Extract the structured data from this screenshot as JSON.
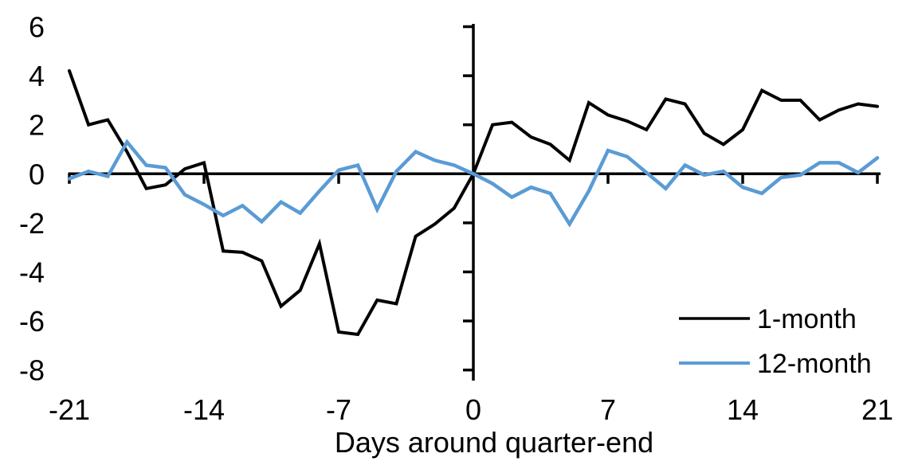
{
  "chart_data": {
    "type": "line",
    "title": "",
    "xlabel": "Days around quarter-end",
    "ylabel": "",
    "x": [
      -21,
      -20,
      -19,
      -18,
      -17,
      -16,
      -15,
      -14,
      -13,
      -12,
      -11,
      -10,
      -9,
      -8,
      -7,
      -6,
      -5,
      -4,
      -3,
      -2,
      -1,
      0,
      1,
      2,
      3,
      4,
      5,
      6,
      7,
      8,
      9,
      10,
      11,
      12,
      13,
      14,
      15,
      16,
      17,
      18,
      19,
      20,
      21
    ],
    "series": [
      {
        "name": "1-month",
        "color": "#000000",
        "values": [
          4.2,
          2.0,
          2.2,
          0.9,
          -0.6,
          -0.45,
          0.2,
          0.45,
          -3.15,
          -3.2,
          -3.55,
          -5.4,
          -4.75,
          -2.85,
          -6.45,
          -6.55,
          -5.15,
          -5.3,
          -2.55,
          -2.05,
          -1.4,
          0,
          2.0,
          2.1,
          1.5,
          1.2,
          0.55,
          2.9,
          2.4,
          2.15,
          1.8,
          3.05,
          2.85,
          1.65,
          1.2,
          1.8,
          3.4,
          3.0,
          3.0,
          2.2,
          2.6,
          2.85,
          2.75
        ]
      },
      {
        "name": "12-month",
        "color": "#5B9BD5",
        "values": [
          -0.2,
          0.1,
          -0.1,
          1.3,
          0.35,
          0.25,
          -0.85,
          -1.25,
          -1.7,
          -1.3,
          -1.95,
          -1.15,
          -1.6,
          -0.7,
          0.15,
          0.35,
          -1.45,
          0.1,
          0.9,
          0.55,
          0.35,
          0,
          -0.4,
          -0.95,
          -0.55,
          -0.8,
          -2.05,
          -0.7,
          0.95,
          0.7,
          0.05,
          -0.6,
          0.35,
          -0.05,
          0.1,
          -0.55,
          -0.8,
          -0.15,
          -0.05,
          0.45,
          0.45,
          0.05,
          0.65
        ]
      }
    ],
    "xlim": [
      -21,
      21
    ],
    "ylim": [
      -8,
      6
    ],
    "xticks": [
      -21,
      -14,
      -7,
      0,
      7,
      14,
      21
    ],
    "yticks": [
      6,
      4,
      2,
      0,
      -2,
      -4,
      -6,
      -8
    ],
    "grid": false,
    "legend_position": "inside-bottom-right",
    "axis_color": "#000000",
    "background": "#FFFFFF"
  }
}
